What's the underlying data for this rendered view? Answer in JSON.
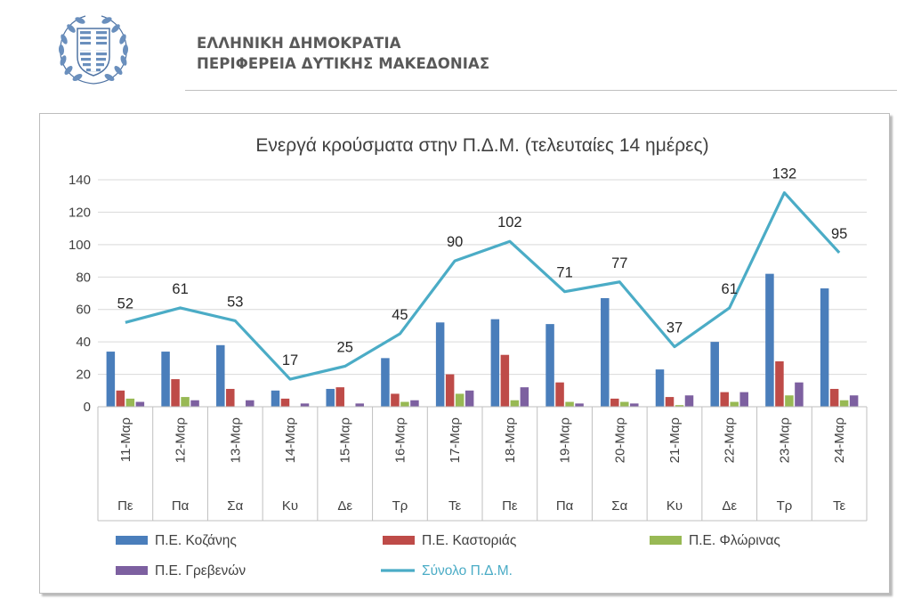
{
  "header": {
    "org_line1": "ΕΛΛΗΝΙΚΗ ΔΗΜΟΚΡΑΤΙΑ",
    "org_line2": "ΠΕΡΙΦΕΡΕΙΑ ΔΥΤΙΚΗΣ ΜΑΚΕΔΟΝΙΑΣ"
  },
  "chart_data": {
    "type": "bar",
    "title": "Ενεργά κρούσματα στην Π.Δ.Μ. (τελευταίες 14 ημέρες)",
    "xlabel": "",
    "ylabel": "",
    "ylim": [
      0,
      140
    ],
    "yticks": [
      0,
      20,
      40,
      60,
      80,
      100,
      120,
      140
    ],
    "grid": true,
    "legend_position": "bottom",
    "categories": [
      "11-Μαρ",
      "12-Μαρ",
      "13-Μαρ",
      "14-Μαρ",
      "15-Μαρ",
      "16-Μαρ",
      "17-Μαρ",
      "18-Μαρ",
      "19-Μαρ",
      "20-Μαρ",
      "21-Μαρ",
      "22-Μαρ",
      "23-Μαρ",
      "24-Μαρ"
    ],
    "days": [
      "Πε",
      "Πα",
      "Σα",
      "Κυ",
      "Δε",
      "Τρ",
      "Τε",
      "Πε",
      "Πα",
      "Σα",
      "Κυ",
      "Δε",
      "Τρ",
      "Τε"
    ],
    "series": [
      {
        "name": "Π.Ε. Κοζάνης",
        "type": "bar",
        "color": "#4a7ebb",
        "values": [
          34,
          34,
          38,
          10,
          11,
          30,
          52,
          54,
          51,
          67,
          23,
          40,
          82,
          73
        ]
      },
      {
        "name": "Π.Ε. Καστοριάς",
        "type": "bar",
        "color": "#be4b48",
        "values": [
          10,
          17,
          11,
          5,
          12,
          8,
          20,
          32,
          15,
          5,
          6,
          9,
          28,
          11
        ]
      },
      {
        "name": "Π.Ε. Φλώρινας",
        "type": "bar",
        "color": "#98b954",
        "values": [
          5,
          6,
          0,
          0,
          0,
          3,
          8,
          4,
          3,
          3,
          1,
          3,
          7,
          4
        ]
      },
      {
        "name": "Π.Ε. Γρεβενών",
        "type": "bar",
        "color": "#7d60a0",
        "values": [
          3,
          4,
          4,
          2,
          2,
          4,
          10,
          12,
          2,
          2,
          7,
          9,
          15,
          7
        ]
      },
      {
        "name": "Σύνολο Π.Δ.Μ.",
        "type": "line",
        "color": "#4bacc6",
        "values": [
          52,
          61,
          53,
          17,
          25,
          45,
          90,
          102,
          71,
          77,
          37,
          61,
          132,
          95
        ]
      }
    ]
  }
}
